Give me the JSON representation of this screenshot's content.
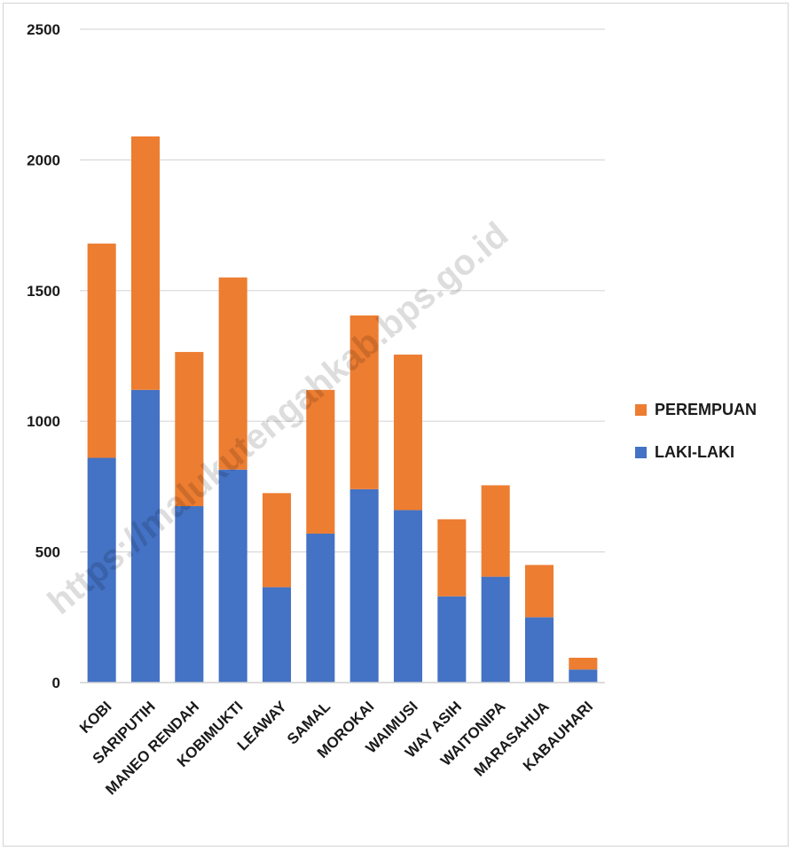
{
  "chart_data": {
    "type": "bar",
    "stacked": true,
    "categories": [
      "KOBI",
      "SARIPUTIH",
      "MANEO RENDAH",
      "KOBIMUKTI",
      "LEAWAY",
      "SAMAL",
      "MOROKAI",
      "WAIMUSI",
      "WAY ASIH",
      "WAITONIPA",
      "MARASAHUA",
      "KABAUHARI"
    ],
    "series": [
      {
        "name": "LAKI-LAKI",
        "color": "#4472C4",
        "values": [
          860,
          1120,
          675,
          815,
          365,
          570,
          740,
          660,
          330,
          405,
          250,
          50
        ]
      },
      {
        "name": "PEREMPUAN",
        "color": "#ED7D31",
        "values": [
          820,
          970,
          590,
          735,
          360,
          550,
          665,
          595,
          295,
          350,
          200,
          45
        ]
      }
    ],
    "yticks": [
      0,
      500,
      1000,
      1500,
      2000,
      2500
    ],
    "ylim": [
      0,
      2500
    ],
    "grid": true,
    "legend_position": "right",
    "watermark": "https://malukutengahkab.bps.go.id"
  }
}
